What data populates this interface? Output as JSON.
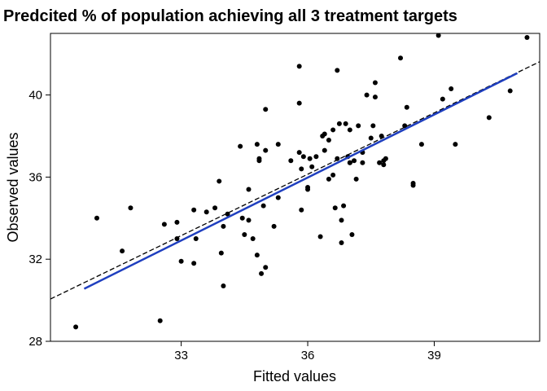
{
  "chart_data": {
    "type": "scatter",
    "title": "Predcited % of population achieving all 3 treatment targets",
    "xlabel": "Fitted values",
    "ylabel": "Observed values",
    "xlim": [
      29.9,
      41.5
    ],
    "ylim": [
      28,
      43
    ],
    "xticks": [
      33,
      36,
      39
    ],
    "yticks": [
      28,
      32,
      36,
      40
    ],
    "grid": false,
    "legend": "none",
    "colors": {
      "points": "#000000",
      "fit_line": "#1f3fbf",
      "ci_line": "#000000"
    },
    "fit_line": {
      "x": [
        30.7,
        40.97
      ],
      "y": [
        30.56,
        41.06
      ]
    },
    "ci_line": {
      "x": [
        29.9,
        41.5
      ],
      "y": [
        30.06,
        41.62
      ]
    },
    "points": {
      "x": [
        30.5,
        31.0,
        31.6,
        31.8,
        32.5,
        32.6,
        32.9,
        32.9,
        33.0,
        33.3,
        33.3,
        33.35,
        33.6,
        33.8,
        33.9,
        33.95,
        34.0,
        34.0,
        34.1,
        34.4,
        34.45,
        34.5,
        34.6,
        34.6,
        34.7,
        34.8,
        34.8,
        34.85,
        34.85,
        34.9,
        34.95,
        35.0,
        35.0,
        35.0,
        35.2,
        35.3,
        35.3,
        35.6,
        35.8,
        35.8,
        35.8,
        35.85,
        35.85,
        35.9,
        36.0,
        36.0,
        36.05,
        36.1,
        36.2,
        36.3,
        36.35,
        36.4,
        36.4,
        36.5,
        36.5,
        36.6,
        36.6,
        36.65,
        36.7,
        36.7,
        36.75,
        36.8,
        36.8,
        36.85,
        36.9,
        36.95,
        37.0,
        37.0,
        37.0,
        37.05,
        37.1,
        37.15,
        37.2,
        37.3,
        37.3,
        37.4,
        37.5,
        37.55,
        37.6,
        37.6,
        37.7,
        37.75,
        37.8,
        37.8,
        37.85,
        38.2,
        38.3,
        38.35,
        38.5,
        38.5,
        38.7,
        39.1,
        39.2,
        39.4,
        39.5,
        40.3,
        40.8,
        41.2
      ],
      "y": [
        28.7,
        34.0,
        32.4,
        34.5,
        29.0,
        33.7,
        33.0,
        33.8,
        31.9,
        31.8,
        34.4,
        33.0,
        34.3,
        34.5,
        35.8,
        32.3,
        30.7,
        33.6,
        34.2,
        37.5,
        34.0,
        33.2,
        35.4,
        33.9,
        33.0,
        37.6,
        32.2,
        36.9,
        36.8,
        31.3,
        34.6,
        31.6,
        37.3,
        39.3,
        33.6,
        35.0,
        37.6,
        36.8,
        41.4,
        39.6,
        37.2,
        36.4,
        34.4,
        37.0,
        35.4,
        35.5,
        36.9,
        36.5,
        37.0,
        33.1,
        38.0,
        37.3,
        38.1,
        35.9,
        37.8,
        38.3,
        36.1,
        34.5,
        41.2,
        36.9,
        38.6,
        32.8,
        33.9,
        34.6,
        38.6,
        37.0,
        36.7,
        38.3,
        36.7,
        33.2,
        36.8,
        35.9,
        38.5,
        37.2,
        36.7,
        40.0,
        37.9,
        38.5,
        40.6,
        39.9,
        36.7,
        38.0,
        36.8,
        36.6,
        36.9,
        41.8,
        38.5,
        39.4,
        35.7,
        35.6,
        37.6,
        42.9,
        39.8,
        40.3,
        37.6,
        38.9,
        40.2,
        42.8
      ]
    }
  }
}
